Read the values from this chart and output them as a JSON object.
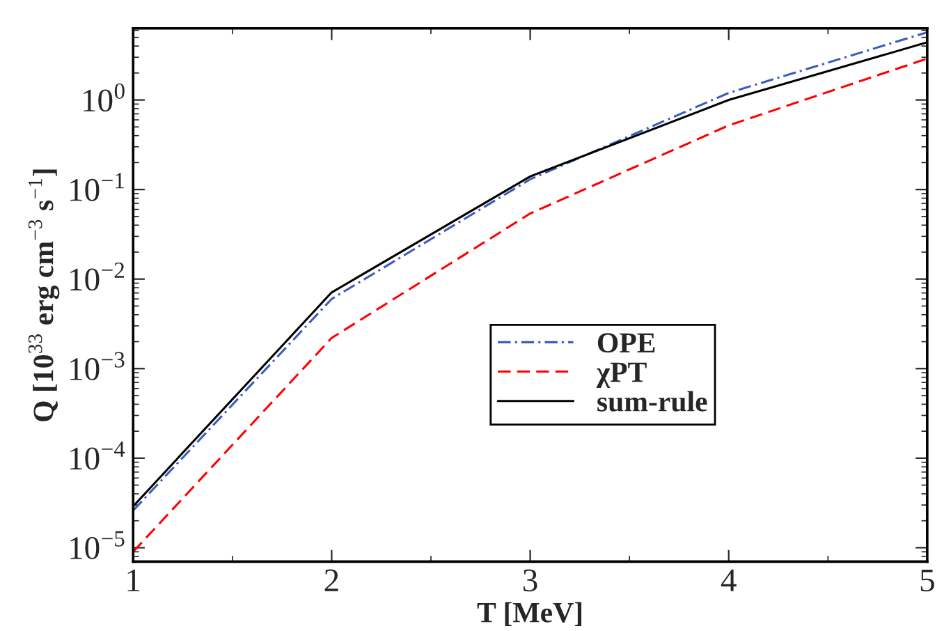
{
  "chart_data": {
    "type": "line",
    "xlabel": "T [MeV]",
    "ylabel": "Q [10$^{33}$ erg cm$^{−3}$ s$^{−1}$]",
    "x": [
      1,
      2,
      3,
      4,
      5
    ],
    "series": [
      {
        "name": "OPE",
        "color": "#3b5bbf",
        "line_style": "dashdot",
        "values": [
          2.6e-05,
          0.006,
          0.13,
          1.2,
          5.7
        ]
      },
      {
        "name": "χPT",
        "color": "#ff0000",
        "line_style": "dashed",
        "values": [
          9e-06,
          0.0022,
          0.054,
          0.52,
          2.9
        ]
      },
      {
        "name": "sum-rule",
        "color": "#000000",
        "line_style": "solid",
        "values": [
          2.9e-05,
          0.0071,
          0.14,
          1.0,
          4.4
        ]
      }
    ],
    "log": "y",
    "xlim": [
      1,
      5
    ],
    "ylim": [
      7e-06,
      6.3
    ],
    "xticks": [
      1,
      2,
      3,
      4,
      5
    ],
    "yticks": [
      {
        "value": 1e-05,
        "label": "10$^{−5}$"
      },
      {
        "value": 0.0001,
        "label": "10$^{−4}$"
      },
      {
        "value": 0.001,
        "label": "10$^{−3}$"
      },
      {
        "value": 0.01,
        "label": "10$^{−2}$"
      },
      {
        "value": 0.1,
        "label": "10$^{−1}$"
      },
      {
        "value": 1,
        "label": "10$^{0}$"
      }
    ],
    "legend": "center right",
    "marker": "none",
    "grid": false
  }
}
